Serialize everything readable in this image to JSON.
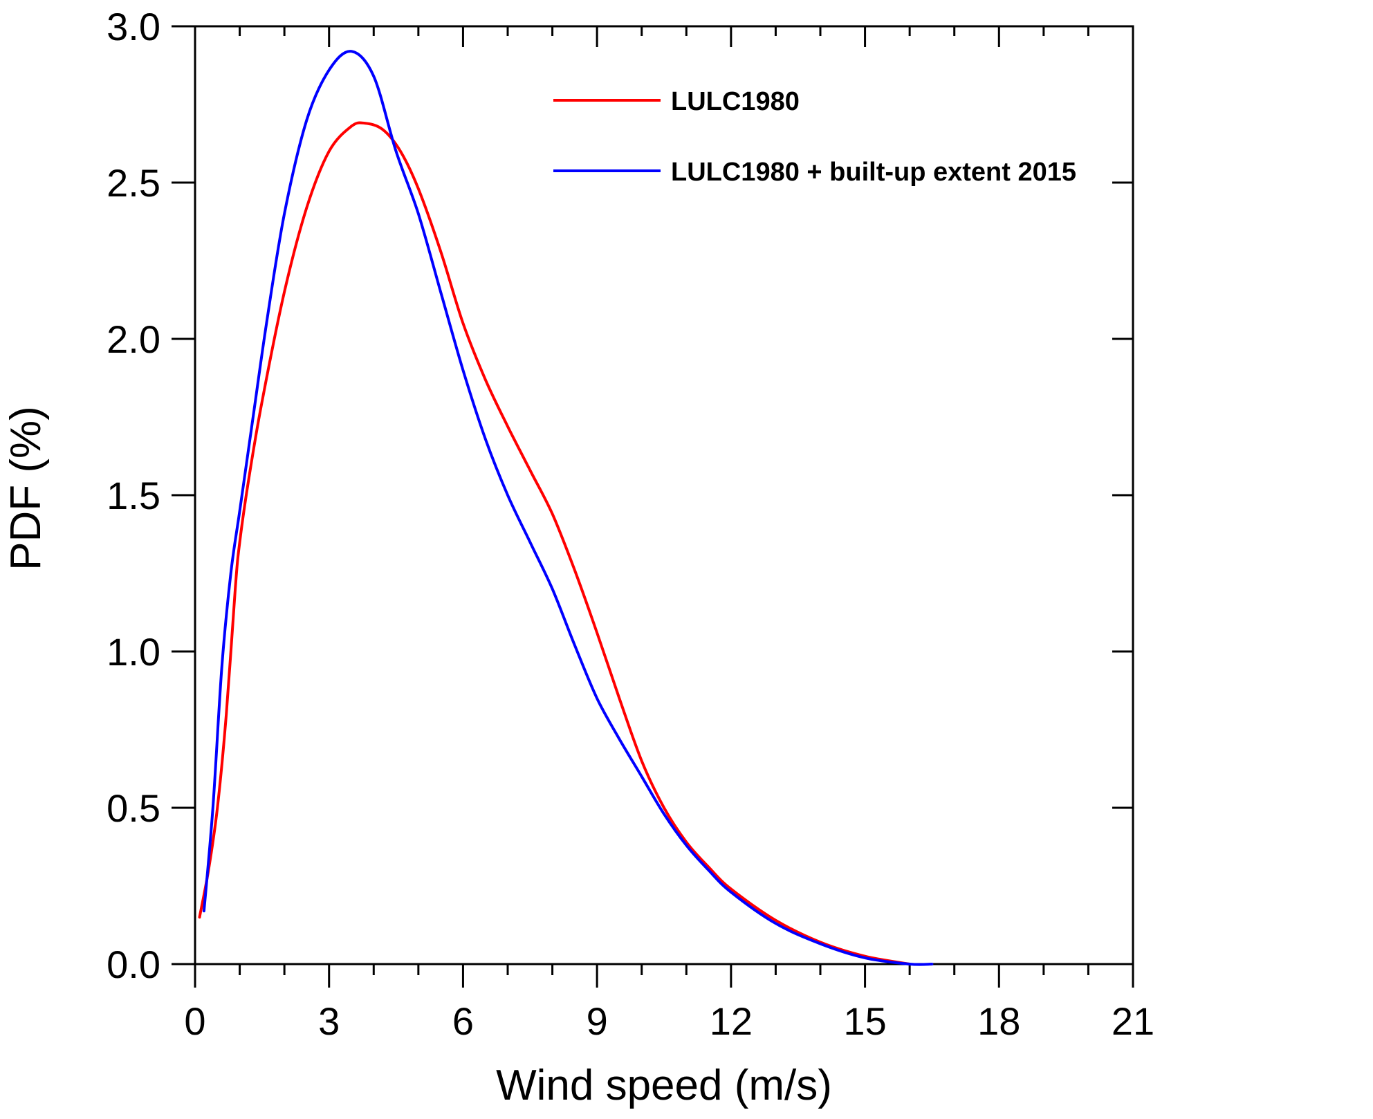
{
  "chart_data": {
    "type": "line",
    "xlabel": "Wind speed (m/s)",
    "ylabel": "PDF (%)",
    "xlim": [
      0,
      21
    ],
    "ylim": [
      0,
      3.0
    ],
    "x_ticks": [
      "0",
      "3",
      "6",
      "9",
      "12",
      "15",
      "18",
      "21"
    ],
    "y_ticks": [
      "0.0",
      "0.5",
      "1.0",
      "1.5",
      "2.0",
      "2.5",
      "3.0"
    ],
    "x_minor_step": 1,
    "grid": false,
    "legend_position": "top-right",
    "series": [
      {
        "name": "LULC1980",
        "color": "#ff0000",
        "x": [
          0.1,
          0.3,
          0.5,
          0.7,
          0.9,
          1.0,
          1.2,
          1.5,
          2.0,
          2.5,
          3.0,
          3.5,
          3.8,
          4.2,
          4.6,
          5.0,
          5.5,
          6.0,
          6.5,
          7.0,
          7.5,
          8.0,
          8.5,
          9.0,
          9.5,
          10.0,
          10.5,
          11.0,
          11.5,
          12.0,
          13.0,
          14.0,
          15.0,
          16.0
        ],
        "y": [
          0.15,
          0.3,
          0.5,
          0.8,
          1.2,
          1.35,
          1.55,
          1.8,
          2.15,
          2.42,
          2.6,
          2.68,
          2.69,
          2.67,
          2.6,
          2.48,
          2.28,
          2.05,
          1.87,
          1.72,
          1.58,
          1.44,
          1.26,
          1.06,
          0.85,
          0.65,
          0.5,
          0.39,
          0.31,
          0.24,
          0.14,
          0.07,
          0.025,
          0.0
        ]
      },
      {
        "name": "LULC1980 + built-up extent 2015",
        "color": "#0000ff",
        "x": [
          0.2,
          0.4,
          0.6,
          0.8,
          1.0,
          1.3,
          1.6,
          2.0,
          2.5,
          3.0,
          3.5,
          4.0,
          4.5,
          5.0,
          5.5,
          6.0,
          6.5,
          7.0,
          7.5,
          8.0,
          8.5,
          9.0,
          9.5,
          10.0,
          10.5,
          11.0,
          11.5,
          12.0,
          13.0,
          14.0,
          15.0,
          16.0,
          16.5
        ],
        "y": [
          0.17,
          0.5,
          0.95,
          1.25,
          1.45,
          1.75,
          2.05,
          2.4,
          2.7,
          2.86,
          2.92,
          2.84,
          2.6,
          2.4,
          2.15,
          1.9,
          1.68,
          1.5,
          1.35,
          1.2,
          1.02,
          0.85,
          0.72,
          0.6,
          0.48,
          0.38,
          0.3,
          0.23,
          0.13,
          0.065,
          0.02,
          0.0,
          0.0
        ]
      }
    ]
  }
}
